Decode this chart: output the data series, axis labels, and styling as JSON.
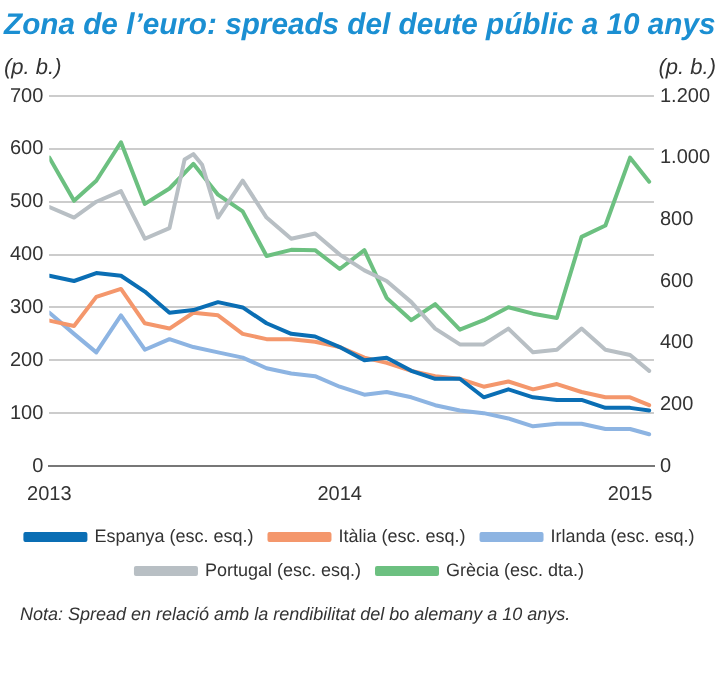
{
  "chart_data": {
    "type": "line",
    "title": "Zona de l’euro: spreads del deute públic a 10 anys",
    "ylabel": "(p. b.)",
    "y2label": "(p. b.)",
    "x": [
      "2013-01-01",
      "2013-02-01",
      "2013-03-01",
      "2013-04-01",
      "2013-05-01",
      "2013-06-01",
      "2013-07-01",
      "2013-08-01",
      "2013-09-01",
      "2013-10-01",
      "2013-11-01",
      "2013-12-01",
      "2014-01-01",
      "2014-02-01",
      "2014-03-01",
      "2014-04-01",
      "2014-05-01",
      "2014-06-01",
      "2014-07-01",
      "2014-08-01",
      "2014-09-01",
      "2014-10-01",
      "2014-11-01",
      "2014-12-01",
      "2015-01-01",
      "2015-01-25"
    ],
    "series": [
      {
        "name": "Espanya (esc. esq.)",
        "color": "#0a6eb4",
        "values": [
          360,
          350,
          365,
          360,
          330,
          290,
          295,
          310,
          300,
          270,
          250,
          245,
          225,
          200,
          205,
          180,
          165,
          165,
          130,
          145,
          130,
          125,
          125,
          110,
          110,
          105
        ]
      },
      {
        "name": "Itàlia (esc. esq.)",
        "color": "#f4976c",
        "values": [
          275,
          265,
          320,
          335,
          270,
          260,
          290,
          285,
          250,
          240,
          240,
          235,
          225,
          205,
          195,
          180,
          170,
          165,
          150,
          160,
          145,
          155,
          140,
          130,
          130,
          115
        ]
      },
      {
        "name": "Irlanda (esc. esq.)",
        "color": "#8db4e2",
        "values": [
          290,
          250,
          215,
          285,
          220,
          240,
          225,
          215,
          205,
          185,
          175,
          170,
          150,
          135,
          140,
          130,
          115,
          105,
          100,
          90,
          75,
          80,
          80,
          70,
          70,
          60
        ]
      },
      {
        "name": "Portugal (esc. esq.)",
        "color": "#b8bfc4",
        "x": [
          "2013-01-01",
          "2013-02-01",
          "2013-03-01",
          "2013-04-01",
          "2013-05-01",
          "2013-06-01",
          "2013-06-20",
          "2013-07-01",
          "2013-07-12",
          "2013-08-01",
          "2013-09-01",
          "2013-10-01",
          "2013-11-01",
          "2013-12-01",
          "2014-01-01",
          "2014-02-01",
          "2014-03-01",
          "2014-04-01",
          "2014-05-01",
          "2014-06-01",
          "2014-07-01",
          "2014-08-01",
          "2014-09-01",
          "2014-10-01",
          "2014-11-01",
          "2014-12-01",
          "2015-01-01",
          "2015-01-25"
        ],
        "values": [
          490,
          470,
          500,
          520,
          430,
          450,
          580,
          590,
          570,
          470,
          540,
          470,
          430,
          440,
          400,
          370,
          350,
          310,
          260,
          230,
          230,
          260,
          215,
          220,
          260,
          220,
          210,
          180
        ]
      },
      {
        "name": "Grècia (esc. dta.)",
        "color": "#6cc080",
        "axis": "y2",
        "values": [
          1000,
          860,
          925,
          1050,
          850,
          900,
          980,
          880,
          826,
          681,
          701,
          700,
          639,
          700,
          545,
          473,
          525,
          442,
          473,
          515,
          494,
          480,
          743,
          780,
          1000,
          922
        ]
      }
    ],
    "xlim": [
      "2013-01-01",
      "2015-01-31"
    ],
    "xticks": [
      "2013",
      "2014",
      "2015"
    ],
    "ylim": [
      0,
      700
    ],
    "yticks": [
      0,
      100,
      200,
      300,
      400,
      500,
      600,
      700
    ],
    "y2lim": [
      0,
      1200
    ],
    "y2ticks": [
      0,
      {
        "value": 200,
        "label": "200"
      },
      {
        "value": 400,
        "label": "400"
      },
      {
        "value": 600,
        "label": "600"
      },
      {
        "value": 800,
        "label": "800"
      },
      {
        "value": 1000,
        "label": "1.000"
      },
      {
        "value": 1200,
        "label": "1.200"
      }
    ],
    "grid": "y",
    "legend": "bottom",
    "marker": "none",
    "line_style": "solid",
    "annotations": [
      "Nota: Spread en relació amb la rendibilitat del bo alemany a 10 anys."
    ]
  }
}
